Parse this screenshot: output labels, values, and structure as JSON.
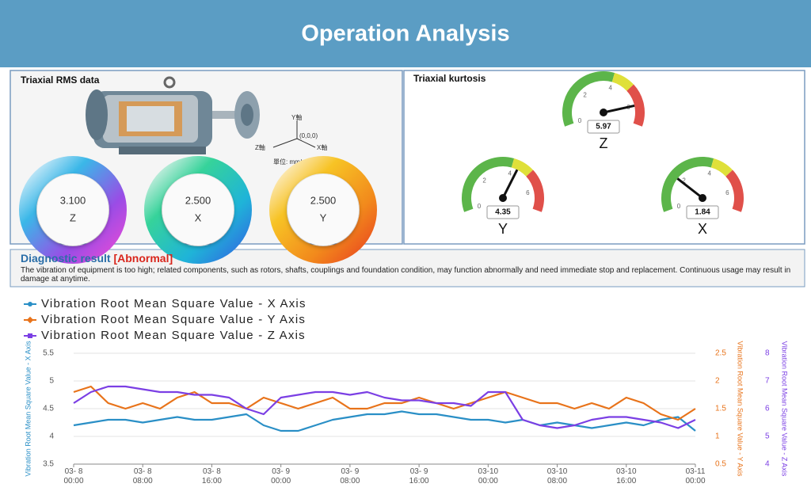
{
  "header": {
    "title": "Operation Analysis"
  },
  "rms_panel": {
    "title": "Triaxial RMS data",
    "axis_labels": {
      "y": "Y軸",
      "origin": "(0,0,0)",
      "z": "Z軸",
      "x": "X軸"
    },
    "unit": "單位: mm/s",
    "gauges": [
      {
        "value": "3.100",
        "axis": "Z"
      },
      {
        "value": "2.500",
        "axis": "X"
      },
      {
        "value": "2.500",
        "axis": "Y"
      }
    ]
  },
  "kurtosis_panel": {
    "title": "Triaxial kurtosis",
    "range": [
      0,
      7
    ],
    "ticks": [
      0,
      2,
      4,
      6
    ],
    "bands": [
      {
        "from": 0,
        "to": 4,
        "color": "#5cb54a"
      },
      {
        "from": 4,
        "to": 5,
        "color": "#dfe03a"
      },
      {
        "from": 5,
        "to": 7,
        "color": "#e0504a"
      }
    ],
    "gauges": [
      {
        "axis": "Z",
        "value": 5.97
      },
      {
        "axis": "Y",
        "value": 4.35
      },
      {
        "axis": "X",
        "value": 1.84
      }
    ]
  },
  "diagnostic": {
    "title": "Diagnostic result",
    "status": "[Abnormal]",
    "text": "The vibration of equipment is too high; related components, such as rotors, shafts, couplings and foundation condition, may function abnormally and need immediate stop and replacement. Continuous usage may result in damage at anytime."
  },
  "chart_data": {
    "type": "line",
    "legend": "top-left",
    "grid": true,
    "categories": [
      "03- 8 00:00",
      null,
      null,
      null,
      "03- 8 08:00",
      null,
      null,
      null,
      "03- 8 16:00",
      null,
      null,
      null,
      "03- 9 00:00",
      null,
      null,
      null,
      "03- 9 08:00",
      null,
      null,
      null,
      "03- 9 16:00",
      null,
      null,
      null,
      "03-10 00:00",
      null,
      null,
      null,
      "03-10 08:00",
      null,
      null,
      null,
      "03-10 16:00",
      null,
      null,
      null,
      "03-11 00:00"
    ],
    "series": [
      {
        "name": "Vibration Root Mean Square Value - X Axis",
        "color": "#2a8fc6",
        "axis": "y",
        "values": [
          4.2,
          4.25,
          4.3,
          4.3,
          4.25,
          4.3,
          4.35,
          4.3,
          4.3,
          4.35,
          4.4,
          4.2,
          4.1,
          4.1,
          4.2,
          4.3,
          4.35,
          4.4,
          4.4,
          4.45,
          4.4,
          4.4,
          4.35,
          4.3,
          4.3,
          4.25,
          4.3,
          4.2,
          4.25,
          4.2,
          4.15,
          4.2,
          4.25,
          4.2,
          4.3,
          4.35,
          4.1
        ]
      },
      {
        "name": "Vibration Root Mean Square Value - Y Axis",
        "color": "#e8731a",
        "axis": "y2",
        "values": [
          1.8,
          1.9,
          1.6,
          1.5,
          1.6,
          1.5,
          1.7,
          1.8,
          1.6,
          1.6,
          1.5,
          1.7,
          1.6,
          1.5,
          1.6,
          1.7,
          1.5,
          1.5,
          1.6,
          1.6,
          1.7,
          1.6,
          1.5,
          1.6,
          1.7,
          1.8,
          1.7,
          1.6,
          1.6,
          1.5,
          1.6,
          1.5,
          1.7,
          1.6,
          1.4,
          1.3,
          1.5
        ]
      },
      {
        "name": "Vibration Root Mean Square Value - Z Axis",
        "color": "#7b3fe4",
        "axis": "y3",
        "values": [
          6.2,
          6.6,
          6.8,
          6.8,
          6.7,
          6.6,
          6.6,
          6.5,
          6.5,
          6.4,
          6.0,
          5.8,
          6.4,
          6.5,
          6.6,
          6.6,
          6.5,
          6.6,
          6.4,
          6.3,
          6.3,
          6.2,
          6.2,
          6.1,
          6.6,
          6.6,
          5.6,
          5.4,
          5.3,
          5.4,
          5.6,
          5.7,
          5.7,
          5.6,
          5.5,
          5.3,
          5.6
        ]
      }
    ],
    "ylabel": "Vibration Root Mean Square Value - X Axis",
    "ylim": [
      3.5,
      5.5
    ],
    "yticks": [
      3.5,
      4,
      4.5,
      5,
      5.5
    ],
    "y2label": "Vibration Root Mean Square Value - Y Axis",
    "y2lim": [
      0.5,
      2.5
    ],
    "y2ticks": [
      0.5,
      1,
      1.5,
      2,
      2.5
    ],
    "y3label": "Vibration Root Mean Square Value - Z Axis",
    "y3lim": [
      4,
      8
    ],
    "y3ticks": [
      4,
      5,
      6,
      7,
      8
    ]
  }
}
